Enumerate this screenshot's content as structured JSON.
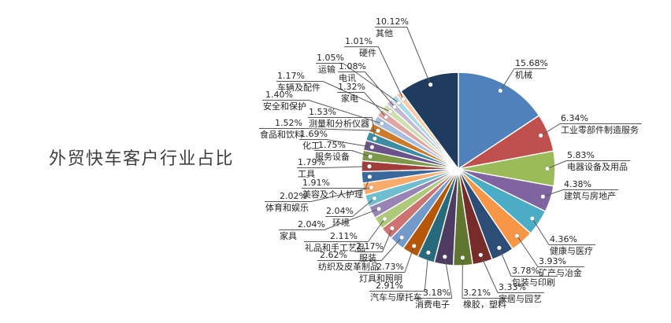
{
  "title": "外贸快车客户行业占比",
  "chart_data": {
    "type": "pie",
    "title": "外贸快车客户行业占比",
    "unit": "%",
    "legend_position": "none",
    "label_style": "outside callout: percent on first line, category below, leader line ending in white dot on slice",
    "rotation": "first slice starts at 12 o'clock, clockwise, descending values, 其他 (others) drawn last",
    "slices": [
      {
        "label": "机械",
        "value": 15.68,
        "display": "15.68%",
        "color": "#4F81BD"
      },
      {
        "label": "工业零部件制造服务",
        "value": 6.34,
        "display": "6.34%",
        "color": "#C0504D"
      },
      {
        "label": "电器设备及用品",
        "value": 5.83,
        "display": "5.83%",
        "color": "#9BBB59"
      },
      {
        "label": "建筑与房地产",
        "value": 4.38,
        "display": "4.38%",
        "color": "#8064A2"
      },
      {
        "label": "健康与医疗",
        "value": 4.36,
        "display": "4.36%",
        "color": "#4BACC6"
      },
      {
        "label": "矿产与冶金",
        "value": 3.93,
        "display": "3.93%",
        "color": "#F79646"
      },
      {
        "label": "包装与印刷",
        "value": 3.78,
        "display": "3.78%",
        "color": "#2C4D75"
      },
      {
        "label": "家居与园艺",
        "value": 3.33,
        "display": "3.33%",
        "color": "#772C2A"
      },
      {
        "label": "橡胶，塑料",
        "value": 3.21,
        "display": "3.21%",
        "color": "#5F7530"
      },
      {
        "label": "消费电子",
        "value": 3.18,
        "display": "3.18%",
        "color": "#4D3B62"
      },
      {
        "label": "汽车与摩托车",
        "value": 2.91,
        "display": "2.91%",
        "color": "#276A7C"
      },
      {
        "label": "灯具和照明",
        "value": 2.73,
        "display": "2.73%",
        "color": "#B65708"
      },
      {
        "label": "纺织及皮革制品",
        "value": 2.62,
        "display": "2.62%",
        "color": "#729ACA"
      },
      {
        "label": "服装",
        "value": 2.17,
        "display": "2.17%",
        "color": "#CD7371"
      },
      {
        "label": "礼品和手工艺品",
        "value": 2.11,
        "display": "2.11%",
        "color": "#AFC97A"
      },
      {
        "label": "家具",
        "value": 2.04,
        "display": "2.04%",
        "color": "#9883B5"
      },
      {
        "label": "环境",
        "value": 2.04,
        "display": "2.04%",
        "color": "#6FBDD1"
      },
      {
        "label": "体育和娱乐",
        "value": 2.02,
        "display": "2.02%",
        "color": "#F9AB6B"
      },
      {
        "label": "美容及个人护理",
        "value": 1.91,
        "display": "1.91%",
        "color": "#3A679C"
      },
      {
        "label": "工具",
        "value": 1.79,
        "display": "1.79%",
        "color": "#A03C39"
      },
      {
        "label": "服务设备",
        "value": 1.75,
        "display": "1.75%",
        "color": "#7E9A49"
      },
      {
        "label": "化工",
        "value": 1.69,
        "display": "1.69%",
        "color": "#6A5389"
      },
      {
        "label": "测量和分析仪器",
        "value": 1.53,
        "display": "1.53%",
        "color": "#3C8DA3"
      },
      {
        "label": "食品和饮料",
        "value": 1.52,
        "display": "1.52%",
        "color": "#CC7B29"
      },
      {
        "label": "安全和保护",
        "value": 1.4,
        "display": "1.40%",
        "color": "#A7BFDE"
      },
      {
        "label": "家电",
        "value": 1.32,
        "display": "1.32%",
        "color": "#E0A6A4"
      },
      {
        "label": "车辆及配件",
        "value": 1.17,
        "display": "1.17%",
        "color": "#CFE0AF"
      },
      {
        "label": "电讯",
        "value": 1.08,
        "display": "1.08%",
        "color": "#C4B8D5"
      },
      {
        "label": "运输",
        "value": 1.05,
        "display": "1.05%",
        "color": "#A9DAE9"
      },
      {
        "label": "硬件",
        "value": 1.01,
        "display": "1.01%",
        "color": "#FCCCA9"
      },
      {
        "label": "其他",
        "value": 10.12,
        "display": "10.12%",
        "color": "#1F3B5E"
      }
    ]
  }
}
